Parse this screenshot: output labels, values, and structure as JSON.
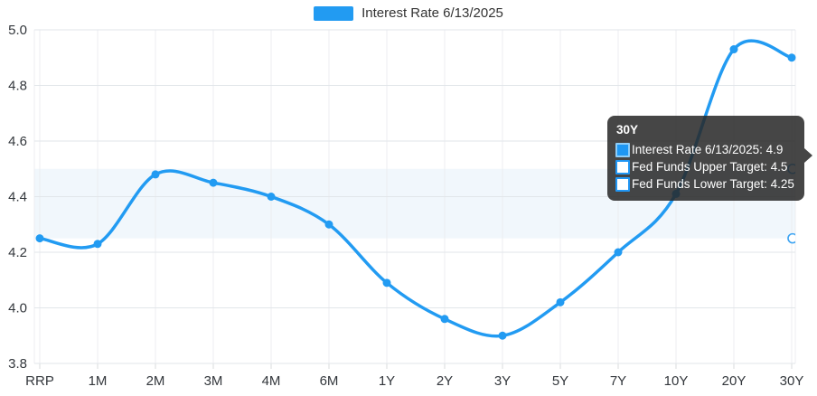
{
  "legend": {
    "label": "Interest Rate 6/13/2025"
  },
  "colors": {
    "line": "#229bf2",
    "band": "#f1f7fc",
    "grid_h": "#e2e6ea",
    "grid_v": "#eceef0",
    "tick_mark": "#d8dbde",
    "axis_text": "#33373c",
    "edge_circle_stroke": "#3ba3f2",
    "tooltip_swatch_filled_fill": "#1e97f3",
    "tooltip_swatch_filled_border": "#8ecdf8",
    "tooltip_swatch_hollow_fill": "#ffffff",
    "tooltip_swatch_hollow_border": "#2196f3"
  },
  "chart_data": {
    "type": "line",
    "title": "",
    "xlabel": "",
    "ylabel": "",
    "x_categories": [
      "RRP",
      "1M",
      "2M",
      "3M",
      "4M",
      "6M",
      "1Y",
      "2Y",
      "3Y",
      "5Y",
      "7Y",
      "10Y",
      "20Y",
      "30Y"
    ],
    "series": [
      {
        "name": "Interest Rate 6/13/2025",
        "values": [
          4.25,
          4.23,
          4.48,
          4.45,
          4.4,
          4.3,
          4.09,
          3.96,
          3.9,
          4.02,
          4.2,
          4.41,
          4.93,
          4.9
        ]
      },
      {
        "name": "Fed Funds Upper Target",
        "constant_value": 4.5
      },
      {
        "name": "Fed Funds Lower Target",
        "constant_value": 4.25
      }
    ],
    "y_ticks": [
      3.8,
      4.0,
      4.2,
      4.4,
      4.6,
      4.8,
      5.0
    ],
    "ylim": [
      3.8,
      5.0
    ],
    "band": {
      "lower": 4.25,
      "upper": 4.5
    },
    "grid": true,
    "legend_position": "top",
    "hovered_point": "30Y"
  },
  "tooltip": {
    "title": "30Y",
    "rows": [
      {
        "text": "Interest Rate 6/13/2025: 4.9",
        "swatch": "filled"
      },
      {
        "text": "Fed Funds Upper Target: 4.5",
        "swatch": "hollow"
      },
      {
        "text": "Fed Funds Lower Target: 4.25",
        "swatch": "hollow"
      }
    ]
  }
}
